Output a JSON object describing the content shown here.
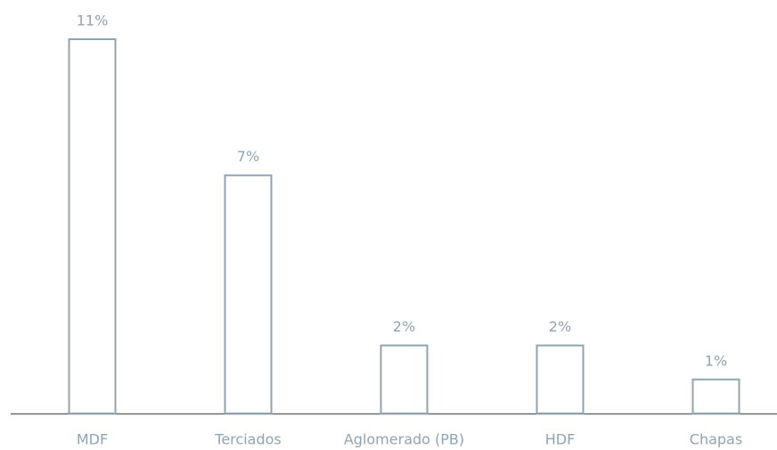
{
  "chart_data": {
    "type": "bar",
    "categories": [
      "MDF",
      "Terciados",
      "Aglomerado (PB)",
      "HDF",
      "Chapas"
    ],
    "values": [
      11,
      7,
      2,
      2,
      1
    ],
    "value_labels": [
      "11%",
      "7%",
      "2%",
      "2%",
      "1%"
    ],
    "color": "#8fa4b2"
  }
}
